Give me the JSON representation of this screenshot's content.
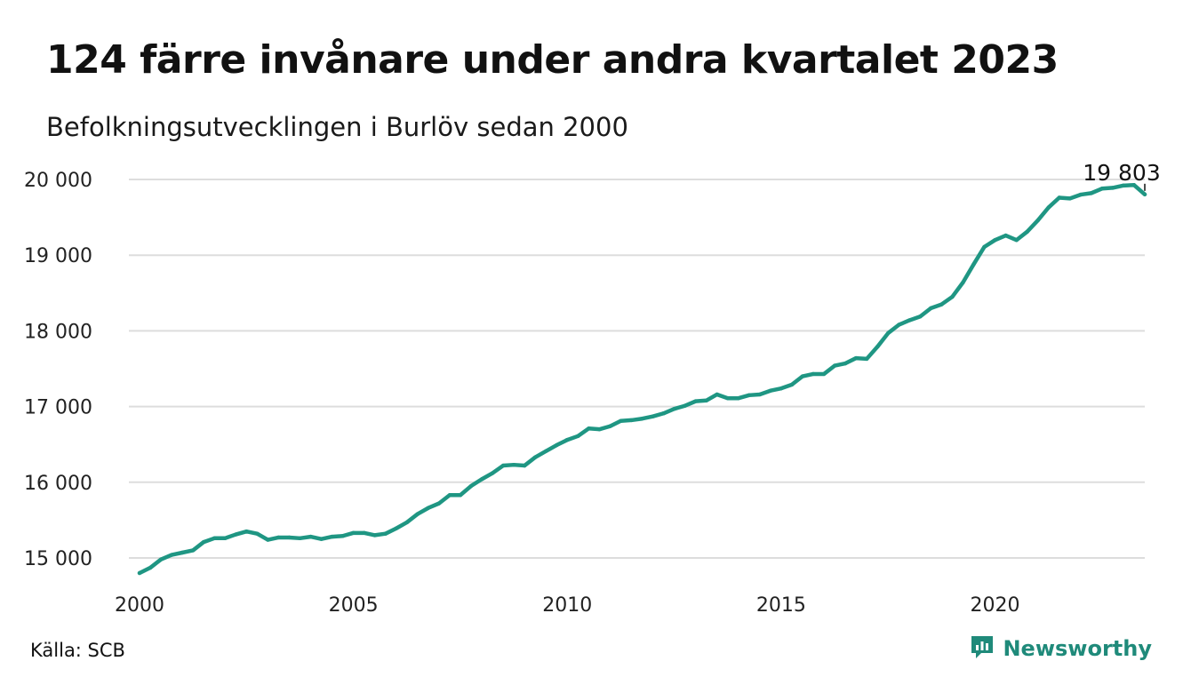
{
  "header": {
    "title": "124 färre invånare under andra kvartalet 2023",
    "subtitle": "Befolkningsutvecklingen i Burlöv sedan 2000"
  },
  "footer": {
    "source": "Källa: SCB",
    "brand": "Newsworthy"
  },
  "colors": {
    "line": "#1f9683",
    "grid": "#dddddd",
    "brand": "#1f8a7a"
  },
  "icons": {
    "brand_logo": "newsworthy-chart-icon"
  },
  "chart_data": {
    "type": "line",
    "title": "124 färre invånare under andra kvartalet 2023",
    "subtitle": "Befolkningsutvecklingen i Burlöv sedan 2000",
    "xlabel": "",
    "ylabel": "",
    "xlim": [
      2000,
      2023.5
    ],
    "ylim": [
      14800,
      20200
    ],
    "grid": true,
    "legend": "none",
    "x_ticks": [
      2000,
      2005,
      2010,
      2015,
      2020
    ],
    "x_tick_labels": [
      "2000",
      "2005",
      "2010",
      "2015",
      "2020"
    ],
    "y_ticks": [
      15000,
      16000,
      17000,
      18000,
      19000,
      20000
    ],
    "y_tick_labels": [
      "15 000",
      "16 000",
      "17 000",
      "18 000",
      "19 000",
      "20 000"
    ],
    "end_label": "19 803",
    "x": [
      2000.0,
      2000.25,
      2000.5,
      2000.75,
      2001.0,
      2001.25,
      2001.5,
      2001.75,
      2002.0,
      2002.25,
      2002.5,
      2002.75,
      2003.0,
      2003.25,
      2003.5,
      2003.75,
      2004.0,
      2004.25,
      2004.5,
      2004.75,
      2005.0,
      2005.25,
      2005.5,
      2005.75,
      2006.0,
      2006.25,
      2006.5,
      2006.75,
      2007.0,
      2007.25,
      2007.5,
      2007.75,
      2008.0,
      2008.25,
      2008.5,
      2008.75,
      2009.0,
      2009.25,
      2009.5,
      2009.75,
      2010.0,
      2010.25,
      2010.5,
      2010.75,
      2011.0,
      2011.25,
      2011.5,
      2011.75,
      2012.0,
      2012.25,
      2012.5,
      2012.75,
      2013.0,
      2013.25,
      2013.5,
      2013.75,
      2014.0,
      2014.25,
      2014.5,
      2014.75,
      2015.0,
      2015.25,
      2015.5,
      2015.75,
      2016.0,
      2016.25,
      2016.5,
      2016.75,
      2017.0,
      2017.25,
      2017.5,
      2017.75,
      2018.0,
      2018.25,
      2018.5,
      2018.75,
      2019.0,
      2019.25,
      2019.5,
      2019.75,
      2020.0,
      2020.25,
      2020.5,
      2020.75,
      2021.0,
      2021.25,
      2021.5,
      2021.75,
      2022.0,
      2022.25,
      2022.5,
      2022.75,
      2023.0,
      2023.25,
      2023.5
    ],
    "series": [
      {
        "values": [
          14800,
          14870,
          14980,
          15040,
          15070,
          15100,
          15210,
          15260,
          15260,
          15310,
          15350,
          15320,
          15240,
          15270,
          15270,
          15260,
          15280,
          15250,
          15280,
          15290,
          15330,
          15330,
          15300,
          15320,
          15390,
          15470,
          15580,
          15660,
          15720,
          15830,
          15830,
          15950,
          16040,
          16120,
          16220,
          16230,
          16220,
          16330,
          16410,
          16490,
          16560,
          16610,
          16710,
          16700,
          16740,
          16810,
          16820,
          16840,
          16870,
          16910,
          16970,
          17010,
          17070,
          17080,
          17160,
          17110,
          17110,
          17150,
          17160,
          17210,
          17240,
          17290,
          17400,
          17430,
          17430,
          17540,
          17570,
          17640,
          17630,
          17790,
          17970,
          18080,
          18140,
          18190,
          18300,
          18350,
          18450,
          18640,
          18880,
          19110,
          19200,
          19260,
          19200,
          19310,
          19460,
          19630,
          19760,
          19750,
          19800,
          19820,
          19880,
          19890,
          19920,
          19927,
          19803
        ]
      }
    ]
  }
}
